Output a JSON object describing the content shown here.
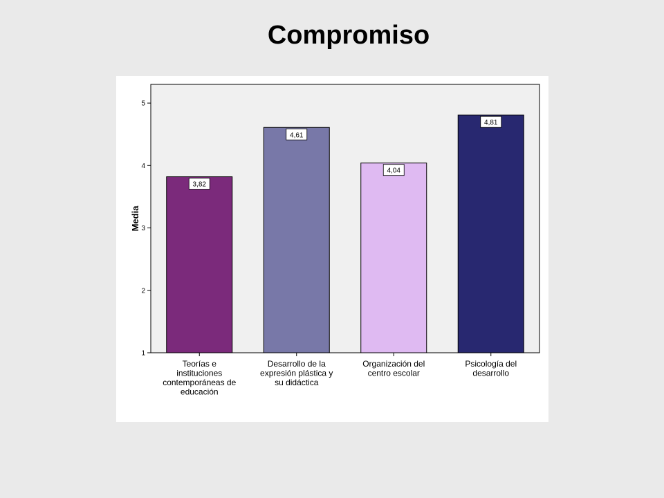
{
  "title": "Compromiso",
  "chart_data": {
    "type": "bar",
    "title": "Compromiso",
    "xlabel": "",
    "ylabel": "Media",
    "ylim": [
      1,
      5.3
    ],
    "yticks": [
      1,
      2,
      3,
      4,
      5
    ],
    "grid": false,
    "categories": [
      [
        "Teorías e",
        "instituciones",
        "contemporáneas de",
        "educación"
      ],
      [
        "Desarrollo de la",
        "expresión plástica y",
        "su didáctica"
      ],
      [
        "Organización del",
        "centro escolar"
      ],
      [
        "Psicología del",
        "desarrollo"
      ]
    ],
    "values": [
      3.82,
      4.61,
      4.04,
      4.81
    ],
    "value_labels": [
      "3,82",
      "4,61",
      "4,04",
      "4,81"
    ],
    "colors": [
      "#7b2a7b",
      "#7878a8",
      "#dfbaf2",
      "#282870"
    ]
  }
}
